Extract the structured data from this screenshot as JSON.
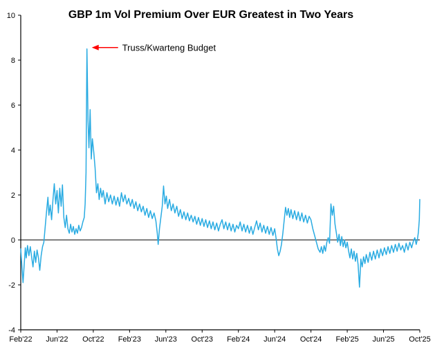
{
  "chart_data": {
    "type": "line",
    "title": "GBP 1m Vol Premium Over EUR Greatest in Two Years",
    "xlabel": "",
    "ylabel": "",
    "x_unit": "months since Feb 2022",
    "xlim": [
      0,
      44
    ],
    "ylim": [
      -4,
      10
    ],
    "yticks": [
      -4,
      -2,
      0,
      2,
      4,
      6,
      8,
      10
    ],
    "xticks": [
      {
        "month": 0,
        "label": "Feb'22"
      },
      {
        "month": 4,
        "label": "Jun'22"
      },
      {
        "month": 8,
        "label": "Oct'22"
      },
      {
        "month": 12,
        "label": "Feb'23"
      },
      {
        "month": 16,
        "label": "Jun'23"
      },
      {
        "month": 20,
        "label": "Oct'23"
      },
      {
        "month": 24,
        "label": "Feb'24"
      },
      {
        "month": 28,
        "label": "Jun'24"
      },
      {
        "month": 32,
        "label": "Oct'24"
      },
      {
        "month": 36,
        "label": "Feb'25"
      },
      {
        "month": 40,
        "label": "Jun'25"
      },
      {
        "month": 44,
        "label": "Oct'25"
      }
    ],
    "grid": false,
    "legend": "none",
    "zero_line": true,
    "annotation": {
      "text": "Truss/Kwarteng Budget",
      "color": "#ff0000",
      "points_to": {
        "x_month": 7.3,
        "y": 8.5
      }
    },
    "series": [
      {
        "name": "GBP 1m vol premium over EUR (vol pts)",
        "color": "#29abe2",
        "points": [
          [
            0,
            -0.4
          ],
          [
            0.1,
            -1.0
          ],
          [
            0.25,
            -1.9
          ],
          [
            0.4,
            -1.0
          ],
          [
            0.5,
            -0.35
          ],
          [
            0.6,
            -0.8
          ],
          [
            0.75,
            -0.25
          ],
          [
            0.9,
            -0.7
          ],
          [
            1.05,
            -0.3
          ],
          [
            1.2,
            -0.75
          ],
          [
            1.35,
            -1.2
          ],
          [
            1.5,
            -0.5
          ],
          [
            1.65,
            -1.0
          ],
          [
            1.8,
            -0.45
          ],
          [
            1.95,
            -0.8
          ],
          [
            2.1,
            -1.35
          ],
          [
            2.25,
            -0.7
          ],
          [
            2.4,
            -0.3
          ],
          [
            2.55,
            -0.1
          ],
          [
            2.7,
            0.6
          ],
          [
            2.85,
            1.3
          ],
          [
            3.0,
            1.9
          ],
          [
            3.1,
            1.1
          ],
          [
            3.25,
            1.55
          ],
          [
            3.4,
            0.9
          ],
          [
            3.55,
            1.8
          ],
          [
            3.7,
            2.5
          ],
          [
            3.85,
            1.6
          ],
          [
            4.0,
            2.2
          ],
          [
            4.15,
            1.2
          ],
          [
            4.3,
            2.3
          ],
          [
            4.45,
            1.5
          ],
          [
            4.6,
            2.45
          ],
          [
            4.75,
            1.0
          ],
          [
            4.9,
            0.55
          ],
          [
            5.05,
            1.1
          ],
          [
            5.2,
            0.5
          ],
          [
            5.35,
            0.3
          ],
          [
            5.5,
            0.7
          ],
          [
            5.65,
            0.35
          ],
          [
            5.8,
            0.6
          ],
          [
            5.95,
            0.25
          ],
          [
            6.1,
            0.5
          ],
          [
            6.25,
            0.3
          ],
          [
            6.4,
            0.65
          ],
          [
            6.55,
            0.4
          ],
          [
            6.7,
            0.55
          ],
          [
            6.85,
            0.8
          ],
          [
            7.0,
            1.0
          ],
          [
            7.1,
            1.6
          ],
          [
            7.2,
            3.0
          ],
          [
            7.3,
            8.5
          ],
          [
            7.42,
            5.3
          ],
          [
            7.52,
            4.1
          ],
          [
            7.65,
            5.8
          ],
          [
            7.78,
            3.6
          ],
          [
            7.9,
            4.5
          ],
          [
            8.05,
            3.9
          ],
          [
            8.2,
            3.2
          ],
          [
            8.35,
            2.1
          ],
          [
            8.5,
            2.5
          ],
          [
            8.65,
            1.8
          ],
          [
            8.8,
            2.3
          ],
          [
            8.95,
            1.9
          ],
          [
            9.1,
            2.2
          ],
          [
            9.3,
            1.6
          ],
          [
            9.5,
            2.1
          ],
          [
            9.7,
            1.7
          ],
          [
            9.9,
            2.0
          ],
          [
            10.1,
            1.6
          ],
          [
            10.3,
            1.95
          ],
          [
            10.5,
            1.55
          ],
          [
            10.7,
            1.9
          ],
          [
            10.9,
            1.5
          ],
          [
            11.1,
            2.1
          ],
          [
            11.3,
            1.7
          ],
          [
            11.5,
            2.0
          ],
          [
            11.7,
            1.6
          ],
          [
            11.9,
            1.85
          ],
          [
            12.1,
            1.5
          ],
          [
            12.3,
            1.8
          ],
          [
            12.5,
            1.4
          ],
          [
            12.7,
            1.7
          ],
          [
            12.9,
            1.3
          ],
          [
            13.1,
            1.6
          ],
          [
            13.3,
            1.25
          ],
          [
            13.5,
            1.5
          ],
          [
            13.7,
            1.1
          ],
          [
            13.9,
            1.4
          ],
          [
            14.1,
            1.0
          ],
          [
            14.3,
            1.3
          ],
          [
            14.5,
            0.95
          ],
          [
            14.7,
            1.2
          ],
          [
            14.9,
            0.85
          ],
          [
            15.05,
            0.3
          ],
          [
            15.15,
            -0.2
          ],
          [
            15.3,
            0.5
          ],
          [
            15.45,
            1.0
          ],
          [
            15.6,
            1.5
          ],
          [
            15.75,
            2.4
          ],
          [
            15.9,
            1.6
          ],
          [
            16.05,
            1.95
          ],
          [
            16.2,
            1.4
          ],
          [
            16.4,
            1.8
          ],
          [
            16.6,
            1.3
          ],
          [
            16.8,
            1.6
          ],
          [
            17.0,
            1.2
          ],
          [
            17.2,
            1.5
          ],
          [
            17.4,
            1.05
          ],
          [
            17.6,
            1.35
          ],
          [
            17.8,
            0.95
          ],
          [
            18.0,
            1.25
          ],
          [
            18.2,
            0.9
          ],
          [
            18.4,
            1.2
          ],
          [
            18.6,
            0.85
          ],
          [
            18.8,
            1.1
          ],
          [
            19.0,
            0.8
          ],
          [
            19.2,
            1.05
          ],
          [
            19.4,
            0.7
          ],
          [
            19.6,
            1.0
          ],
          [
            19.8,
            0.65
          ],
          [
            20.0,
            0.95
          ],
          [
            20.2,
            0.6
          ],
          [
            20.4,
            0.9
          ],
          [
            20.6,
            0.55
          ],
          [
            20.8,
            0.85
          ],
          [
            21.0,
            0.5
          ],
          [
            21.2,
            0.8
          ],
          [
            21.4,
            0.45
          ],
          [
            21.6,
            0.75
          ],
          [
            21.8,
            0.4
          ],
          [
            22.0,
            0.7
          ],
          [
            22.2,
            0.9
          ],
          [
            22.4,
            0.5
          ],
          [
            22.6,
            0.8
          ],
          [
            22.8,
            0.45
          ],
          [
            23.0,
            0.75
          ],
          [
            23.2,
            0.4
          ],
          [
            23.4,
            0.7
          ],
          [
            23.6,
            0.35
          ],
          [
            23.8,
            0.65
          ],
          [
            24.0,
            0.5
          ],
          [
            24.2,
            0.8
          ],
          [
            24.4,
            0.4
          ],
          [
            24.6,
            0.7
          ],
          [
            24.8,
            0.35
          ],
          [
            25.0,
            0.65
          ],
          [
            25.2,
            0.3
          ],
          [
            25.4,
            0.6
          ],
          [
            25.6,
            0.25
          ],
          [
            25.8,
            0.55
          ],
          [
            26.0,
            0.85
          ],
          [
            26.2,
            0.45
          ],
          [
            26.4,
            0.75
          ],
          [
            26.6,
            0.35
          ],
          [
            26.8,
            0.65
          ],
          [
            27.0,
            0.3
          ],
          [
            27.2,
            0.6
          ],
          [
            27.4,
            0.25
          ],
          [
            27.6,
            0.55
          ],
          [
            27.8,
            0.2
          ],
          [
            28.0,
            0.5
          ],
          [
            28.15,
            0.1
          ],
          [
            28.3,
            -0.4
          ],
          [
            28.45,
            -0.7
          ],
          [
            28.6,
            -0.5
          ],
          [
            28.75,
            -0.2
          ],
          [
            28.9,
            0.3
          ],
          [
            29.05,
            0.9
          ],
          [
            29.2,
            1.45
          ],
          [
            29.35,
            1.1
          ],
          [
            29.5,
            1.4
          ],
          [
            29.65,
            1.0
          ],
          [
            29.8,
            1.35
          ],
          [
            30.0,
            0.95
          ],
          [
            30.2,
            1.3
          ],
          [
            30.4,
            0.9
          ],
          [
            30.6,
            1.25
          ],
          [
            30.8,
            0.85
          ],
          [
            31.0,
            1.2
          ],
          [
            31.2,
            0.8
          ],
          [
            31.4,
            1.1
          ],
          [
            31.6,
            0.75
          ],
          [
            31.8,
            1.05
          ],
          [
            32.0,
            0.9
          ],
          [
            32.2,
            0.5
          ],
          [
            32.4,
            0.2
          ],
          [
            32.6,
            -0.1
          ],
          [
            32.8,
            -0.4
          ],
          [
            33.0,
            -0.55
          ],
          [
            33.15,
            -0.3
          ],
          [
            33.3,
            -0.6
          ],
          [
            33.45,
            -0.25
          ],
          [
            33.6,
            -0.5
          ],
          [
            33.75,
            -0.1
          ],
          [
            33.9,
            0.1
          ],
          [
            34.05,
            -0.15
          ],
          [
            34.2,
            1.6
          ],
          [
            34.35,
            1.1
          ],
          [
            34.5,
            1.5
          ],
          [
            34.65,
            0.7
          ],
          [
            34.8,
            0.3
          ],
          [
            34.95,
            -0.1
          ],
          [
            35.1,
            0.25
          ],
          [
            35.25,
            -0.25
          ],
          [
            35.4,
            0.15
          ],
          [
            35.55,
            -0.3
          ],
          [
            35.7,
            0.0
          ],
          [
            35.85,
            -0.35
          ],
          [
            36.0,
            -0.1
          ],
          [
            36.15,
            -0.5
          ],
          [
            36.3,
            -0.8
          ],
          [
            36.45,
            -0.4
          ],
          [
            36.6,
            -0.85
          ],
          [
            36.75,
            -0.5
          ],
          [
            36.9,
            -0.95
          ],
          [
            37.05,
            -0.6
          ],
          [
            37.2,
            -1.1
          ],
          [
            37.35,
            -2.1
          ],
          [
            37.5,
            -0.85
          ],
          [
            37.65,
            -1.2
          ],
          [
            37.8,
            -0.75
          ],
          [
            37.95,
            -1.05
          ],
          [
            38.1,
            -0.65
          ],
          [
            38.3,
            -1.0
          ],
          [
            38.5,
            -0.55
          ],
          [
            38.7,
            -0.9
          ],
          [
            38.9,
            -0.5
          ],
          [
            39.1,
            -0.85
          ],
          [
            39.3,
            -0.45
          ],
          [
            39.5,
            -0.8
          ],
          [
            39.7,
            -0.4
          ],
          [
            39.9,
            -0.7
          ],
          [
            40.1,
            -0.35
          ],
          [
            40.3,
            -0.65
          ],
          [
            40.5,
            -0.3
          ],
          [
            40.7,
            -0.6
          ],
          [
            40.9,
            -0.25
          ],
          [
            41.1,
            -0.55
          ],
          [
            41.3,
            -0.2
          ],
          [
            41.5,
            -0.5
          ],
          [
            41.7,
            -0.15
          ],
          [
            41.9,
            -0.45
          ],
          [
            42.1,
            -0.25
          ],
          [
            42.3,
            -0.55
          ],
          [
            42.5,
            -0.15
          ],
          [
            42.7,
            -0.45
          ],
          [
            42.9,
            -0.1
          ],
          [
            43.1,
            -0.35
          ],
          [
            43.3,
            -0.05
          ],
          [
            43.45,
            0.1
          ],
          [
            43.6,
            -0.2
          ],
          [
            43.75,
            0.05
          ],
          [
            43.85,
            0.35
          ],
          [
            43.95,
            0.9
          ],
          [
            44.0,
            1.8
          ]
        ]
      }
    ]
  }
}
